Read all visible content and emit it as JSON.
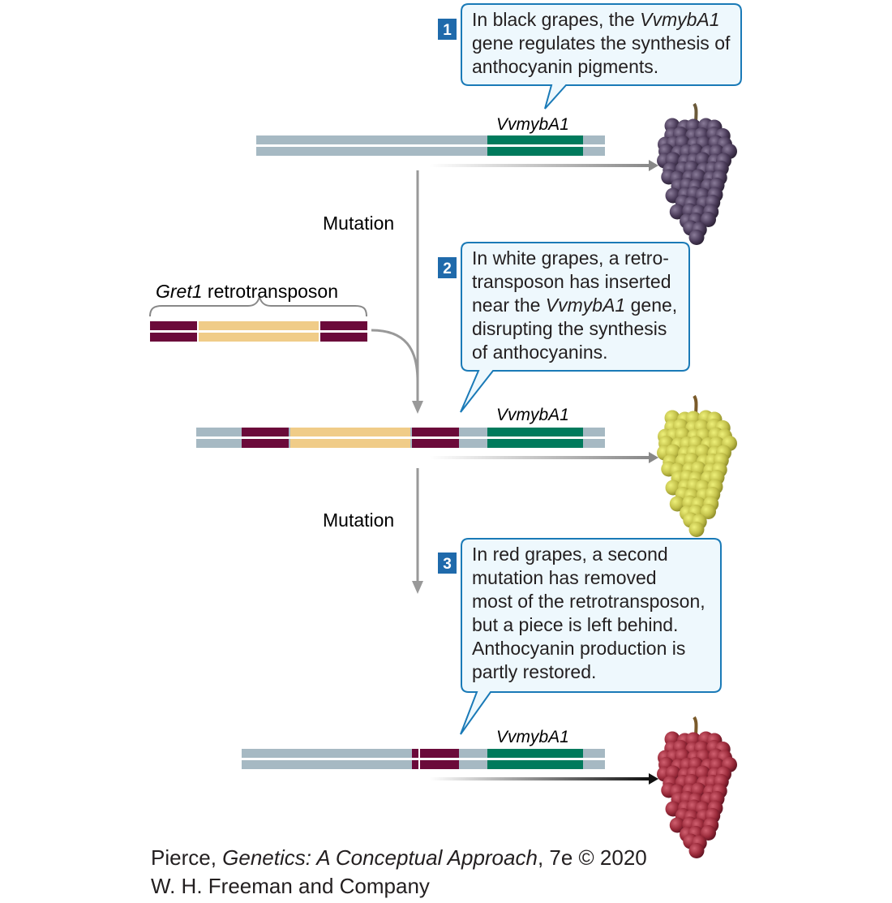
{
  "callouts": [
    {
      "number": "1",
      "lines": [
        {
          "pre": "In black grapes, the ",
          "em": "VvmybA1",
          "post": ""
        },
        {
          "pre": "gene regulates the synthesis of",
          "em": "",
          "post": ""
        },
        {
          "pre": "anthocyanin pigments.",
          "em": "",
          "post": ""
        }
      ]
    },
    {
      "number": "2",
      "lines": [
        {
          "pre": "In white grapes, a retro-",
          "em": "",
          "post": ""
        },
        {
          "pre": "transposon has inserted",
          "em": "",
          "post": ""
        },
        {
          "pre": "near the ",
          "em": "VvmybA1",
          "post": " gene,"
        },
        {
          "pre": "disrupting the synthesis",
          "em": "",
          "post": ""
        },
        {
          "pre": "of anthocyanins.",
          "em": "",
          "post": ""
        }
      ]
    },
    {
      "number": "3",
      "lines": [
        {
          "pre": "In red grapes, a second",
          "em": "",
          "post": ""
        },
        {
          "pre": "mutation has removed",
          "em": "",
          "post": ""
        },
        {
          "pre": "most of the retrotransposon,",
          "em": "",
          "post": ""
        },
        {
          "pre": "but a piece is left behind.",
          "em": "",
          "post": ""
        },
        {
          "pre": "Anthocyanin production is",
          "em": "",
          "post": ""
        },
        {
          "pre": "partly restored.",
          "em": "",
          "post": ""
        }
      ]
    }
  ],
  "gene_label": "VvmybA1",
  "mutation_label": "Mutation",
  "retrotransposon_label": {
    "name": "Gret1",
    "suffix": " retrotransposon"
  },
  "credit": {
    "author": "Pierce, ",
    "title": "Genetics: A Conceptual Approach",
    "edition": ", 7e © 2020",
    "publisher": "W. H. Freeman and Company"
  },
  "colors": {
    "dna_gray": "#a6b9c3",
    "gene_green": "#007a5c",
    "retro_maroon": "#6b0a3a",
    "retro_tan": "#f0cc88",
    "callout_border": "#1a7ab7",
    "callout_fill": "#eef8fd",
    "number_badge": "#1f6aab",
    "black_grape": "#4b3c5a",
    "white_grape": "#c2c04a",
    "red_grape": "#9a2a3a"
  }
}
